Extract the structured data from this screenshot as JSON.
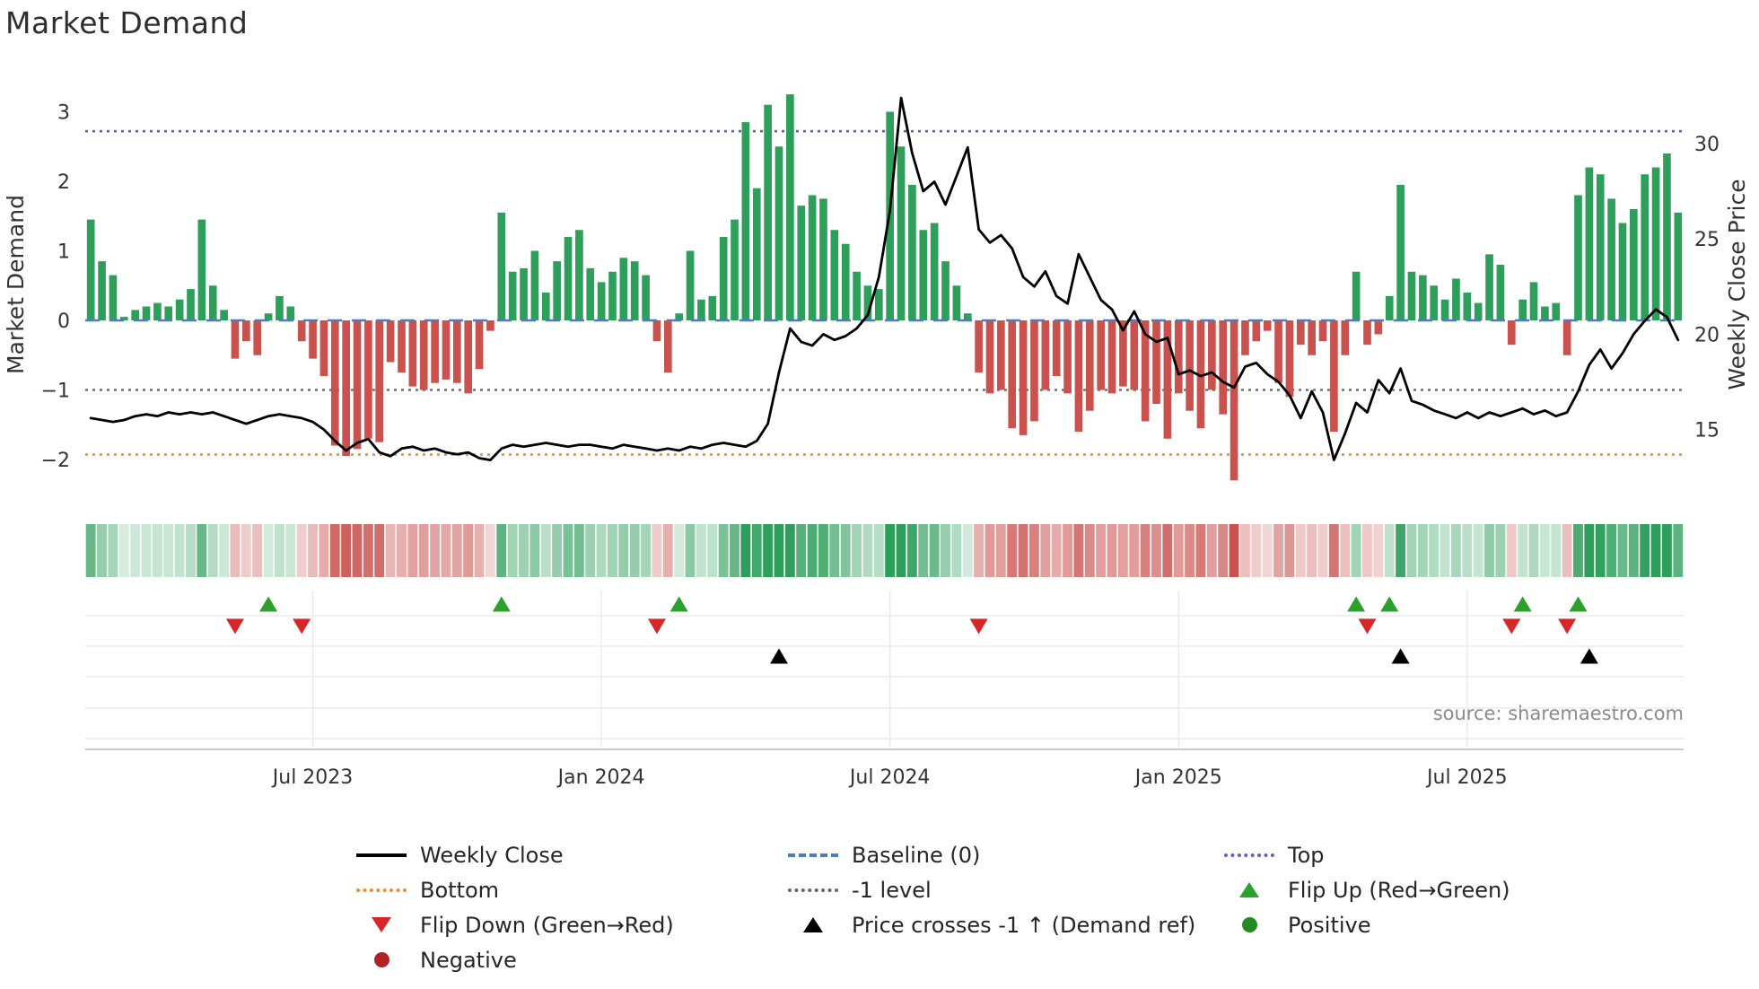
{
  "title": "Market Demand",
  "source": "source: sharemaestro.com",
  "axes": {
    "left_label": "Market Demand",
    "right_label": "Weekly Close Price",
    "left_ticks": [
      {
        "value": 3,
        "label": "3"
      },
      {
        "value": 2,
        "label": "2"
      },
      {
        "value": 1,
        "label": "1"
      },
      {
        "value": 0,
        "label": "0"
      },
      {
        "value": -1,
        "label": "−1"
      },
      {
        "value": -2,
        "label": "−2"
      }
    ],
    "right_ticks": [
      {
        "value": 30,
        "label": "30"
      },
      {
        "value": 25,
        "label": "25"
      },
      {
        "value": 20,
        "label": "20"
      },
      {
        "value": 15,
        "label": "15"
      }
    ],
    "x_ticks": [
      {
        "label": "Jul 2023",
        "index": 20
      },
      {
        "label": "Jan 2024",
        "index": 46
      },
      {
        "label": "Jul 2024",
        "index": 72
      },
      {
        "label": "Jan 2025",
        "index": 98
      },
      {
        "label": "Jul 2025",
        "index": 124
      }
    ]
  },
  "colors": {
    "bar_positive": "#2e9e5b",
    "bar_negative": "#c9524e",
    "price_line": "#000000",
    "baseline": "#4a7ebb",
    "top_level": "#6a5acd",
    "bottom_level": "#f28c28",
    "minus_one_level": "#666666",
    "flip_up": "#2ca02c",
    "flip_down": "#d62728",
    "price_cross": "#000000",
    "positive_dot": "#228b22",
    "negative_dot": "#b22222",
    "grid": "#e8e8e8",
    "spine": "#b8b8b8",
    "tick_text": "#333333",
    "source_text": "#8a8a8a"
  },
  "chart_data": {
    "type": "bar+line",
    "title": "Market Demand",
    "ylabel_left": "Market Demand",
    "ylabel_right": "Weekly Close Price",
    "ylim_left": [
      -2.45,
      3.45
    ],
    "ylim_right": [
      12.7,
      33.4
    ],
    "levels": {
      "baseline": 0,
      "top": 2.72,
      "bottom": -1.93,
      "minus_one": -1
    },
    "demand": [
      1.45,
      0.85,
      0.65,
      0.05,
      0.15,
      0.2,
      0.25,
      0.2,
      0.3,
      0.45,
      1.45,
      0.5,
      0.15,
      -0.55,
      -0.3,
      -0.5,
      0.1,
      0.35,
      0.2,
      -0.3,
      -0.55,
      -0.8,
      -1.8,
      -1.95,
      -1.85,
      -1.7,
      -1.75,
      -0.6,
      -0.75,
      -0.95,
      -1.0,
      -0.9,
      -0.85,
      -0.9,
      -1.05,
      -0.7,
      -0.15,
      1.55,
      0.7,
      0.75,
      1.0,
      0.4,
      0.85,
      1.2,
      1.3,
      0.75,
      0.55,
      0.7,
      0.9,
      0.85,
      0.65,
      -0.3,
      -0.75,
      0.1,
      1.0,
      0.3,
      0.35,
      1.2,
      1.45,
      2.85,
      1.9,
      3.1,
      2.5,
      3.25,
      1.65,
      1.8,
      1.75,
      1.3,
      1.1,
      0.7,
      0.5,
      0.45,
      3.0,
      2.5,
      1.95,
      1.3,
      1.4,
      0.85,
      0.5,
      0.1,
      -0.75,
      -1.05,
      -1.0,
      -1.55,
      -1.65,
      -1.45,
      -1.0,
      -0.8,
      -1.05,
      -1.6,
      -1.3,
      -1.0,
      -1.05,
      -0.95,
      -1.0,
      -1.45,
      -1.2,
      -1.7,
      -1.05,
      -1.3,
      -1.55,
      -1.0,
      -1.35,
      -2.3,
      -0.5,
      -0.3,
      -0.15,
      -0.9,
      -1.1,
      -0.35,
      -0.5,
      -0.3,
      -1.6,
      -0.5,
      0.7,
      -0.35,
      -0.2,
      0.35,
      1.95,
      0.7,
      0.65,
      0.5,
      0.3,
      0.6,
      0.4,
      0.25,
      0.95,
      0.8,
      -0.35,
      0.3,
      0.55,
      0.2,
      0.25,
      -0.5,
      1.8,
      2.2,
      2.1,
      1.75,
      1.4,
      1.6,
      2.1,
      2.2,
      2.4,
      1.55
    ],
    "price": [
      15.6,
      15.5,
      15.4,
      15.5,
      15.7,
      15.8,
      15.7,
      15.9,
      15.8,
      15.9,
      15.8,
      15.9,
      15.7,
      15.5,
      15.3,
      15.5,
      15.7,
      15.8,
      15.7,
      15.6,
      15.4,
      15.0,
      14.4,
      13.9,
      14.3,
      14.5,
      13.8,
      13.6,
      14.0,
      14.1,
      13.9,
      14.0,
      13.8,
      13.7,
      13.8,
      13.5,
      13.4,
      14.0,
      14.2,
      14.1,
      14.2,
      14.3,
      14.2,
      14.1,
      14.2,
      14.2,
      14.1,
      14.0,
      14.2,
      14.1,
      14.0,
      13.9,
      14.0,
      13.9,
      14.1,
      14.0,
      14.2,
      14.3,
      14.2,
      14.1,
      14.4,
      15.3,
      18.0,
      20.3,
      19.6,
      19.4,
      20.0,
      19.7,
      19.9,
      20.3,
      21.0,
      23.0,
      26.5,
      32.4,
      29.5,
      27.5,
      28.0,
      26.8,
      28.3,
      29.8,
      25.5,
      24.8,
      25.2,
      24.5,
      23.0,
      22.5,
      23.3,
      22.0,
      21.6,
      24.2,
      23.0,
      21.8,
      21.3,
      20.2,
      21.2,
      20.0,
      19.6,
      19.8,
      17.9,
      18.1,
      17.8,
      18.0,
      17.5,
      17.2,
      18.3,
      18.5,
      17.9,
      17.5,
      16.8,
      15.6,
      17.0,
      15.9,
      13.4,
      14.8,
      16.4,
      15.9,
      17.6,
      16.9,
      18.2,
      16.5,
      16.3,
      16.0,
      15.8,
      15.6,
      15.9,
      15.6,
      15.9,
      15.7,
      15.9,
      16.1,
      15.8,
      16.0,
      15.7,
      15.9,
      17.0,
      18.4,
      19.2,
      18.2,
      19.0,
      20.0,
      20.7,
      21.3,
      20.9,
      19.7
    ],
    "markers": {
      "flip_up": [
        16,
        37,
        53,
        114,
        117,
        129,
        134
      ],
      "flip_down": [
        13,
        19,
        51,
        80,
        115,
        128,
        133
      ],
      "price_cross_up": [
        62,
        118,
        135
      ]
    }
  },
  "legend": {
    "columns": [
      [
        {
          "swatch": "line",
          "color": "#000000",
          "label": "Weekly Close"
        },
        {
          "swatch": "dotted",
          "color": "#f28c28",
          "label": "Bottom"
        },
        {
          "swatch": "tri-down",
          "color": "#d62728",
          "label": "Flip Down (Green→Red)"
        },
        {
          "swatch": "dot",
          "color": "#b22222",
          "label": "Negative"
        }
      ],
      [
        {
          "swatch": "dashed",
          "color": "#4a7ebb",
          "label": "Baseline (0)"
        },
        {
          "swatch": "dotted",
          "color": "#666666",
          "label": "-1 level"
        },
        {
          "swatch": "tri-up",
          "color": "#000000",
          "label": "Price crosses -1 ↑ (Demand ref)"
        }
      ],
      [
        {
          "swatch": "dotted",
          "color": "#6a5acd",
          "label": "Top"
        },
        {
          "swatch": "tri-up",
          "color": "#2ca02c",
          "label": "Flip Up (Red→Green)"
        },
        {
          "swatch": "dot",
          "color": "#228b22",
          "label": "Positive"
        }
      ]
    ]
  }
}
